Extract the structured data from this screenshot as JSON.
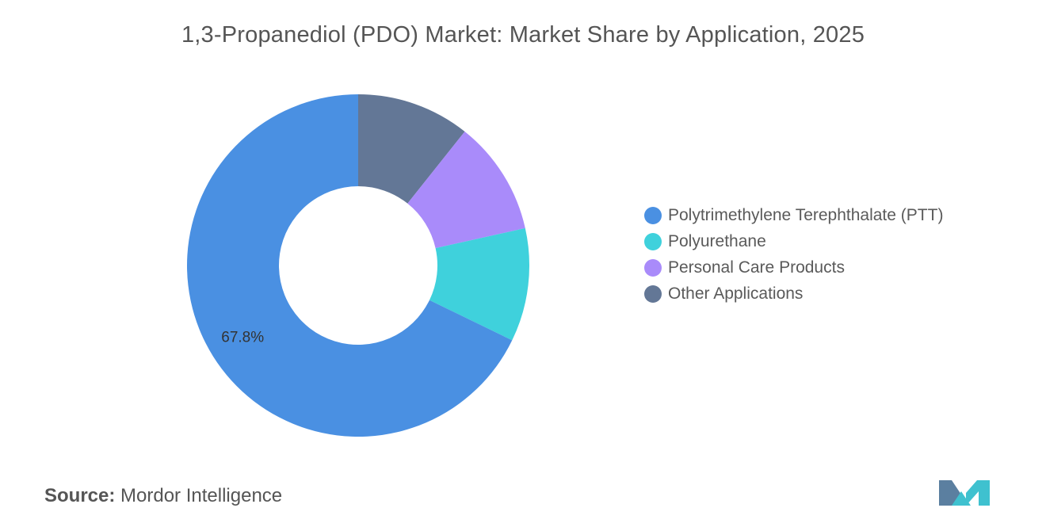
{
  "title": "1,3-Propanediol (PDO) Market: Market Share by Application, 2025",
  "chart_data": {
    "type": "pie",
    "donut": true,
    "title": "1,3-Propanediol (PDO) Market: Market Share by Application, 2025",
    "series": [
      {
        "name": "Polytrimethylene Terephthalate (PTT)",
        "value": 67.8,
        "color": "#4a90e2"
      },
      {
        "name": "Polyurethane",
        "value": 10.7,
        "color": "#3fd1dc"
      },
      {
        "name": "Personal Care Products",
        "value": 10.8,
        "color": "#a98bfa"
      },
      {
        "name": "Other Applications",
        "value": 10.7,
        "color": "#637796"
      }
    ],
    "data_labels": [
      {
        "series": "Polytrimethylene Terephthalate (PTT)",
        "text": "67.8%"
      }
    ],
    "legend_position": "right"
  },
  "source": {
    "label": "Source:",
    "value": "Mordor Intelligence"
  },
  "logo": {
    "colors": [
      "#5b7fa0",
      "#3fc1cf"
    ]
  }
}
